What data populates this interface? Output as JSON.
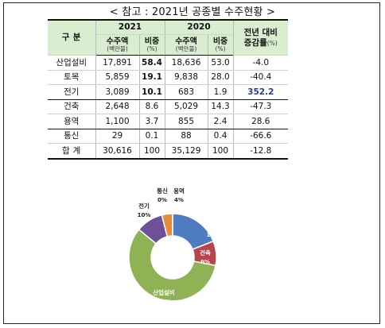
{
  "title": "< 참고 : 2021년 공종별 수주현황 >",
  "table": {
    "header": {
      "category": "구 분",
      "year_2021": "2021",
      "year_2020": "2020",
      "orders": "수주액",
      "orders_unit": "(백만불)",
      "share": "비중",
      "share_unit": "(%)",
      "yoy_line1": "전년 대비",
      "yoy_line2": "증감률",
      "yoy_unit": "(%)"
    },
    "rows": [
      {
        "name": "산업설비",
        "v2021": "17,891",
        "s2021": "58.4",
        "v2020": "18,636",
        "s2020": "53.0",
        "change": "-4.0"
      },
      {
        "name": "토목",
        "v2021": "5,859",
        "s2021": "19.1",
        "v2020": "9,838",
        "s2020": "28.0",
        "change": "-40.4"
      },
      {
        "name": "전기",
        "v2021": "3,089",
        "s2021": "10.1",
        "v2020": "683",
        "s2020": "1.9",
        "change": "352.2"
      },
      {
        "name": "건축",
        "v2021": "2,648",
        "s2021": "8.6",
        "v2020": "5,029",
        "s2020": "14.3",
        "change": "-47.3"
      },
      {
        "name": "용역",
        "v2021": "1,100",
        "s2021": "3.7",
        "v2020": "855",
        "s2020": "2.4",
        "change": "28.6"
      },
      {
        "name": "통신",
        "v2021": "29",
        "s2021": "0.1",
        "v2020": "88",
        "s2020": "0.4",
        "change": "-66.6"
      }
    ],
    "total": {
      "name": "합 계",
      "v2021": "30,616",
      "s2021": "100",
      "v2020": "35,129",
      "s2020": "100",
      "change": "-12.8"
    }
  },
  "chart_data": {
    "type": "pie",
    "donut": true,
    "slices": [
      {
        "label": "토목",
        "pct_label": "19%",
        "value": 19,
        "color": "#4f7cc0"
      },
      {
        "label": "건축",
        "pct_label": "9%",
        "value": 9,
        "color": "#b5464b"
      },
      {
        "label": "산업설비",
        "pct_label": "58%",
        "value": 58,
        "color": "#8fb255"
      },
      {
        "label": "전기",
        "pct_label": "10%",
        "value": 10,
        "color": "#6f4f96"
      },
      {
        "label": "통신",
        "pct_label": "0%",
        "value": 0,
        "color": "#3a8ec0"
      },
      {
        "label": "용역",
        "pct_label": "4%",
        "value": 4,
        "color": "#e48e3a"
      }
    ]
  }
}
